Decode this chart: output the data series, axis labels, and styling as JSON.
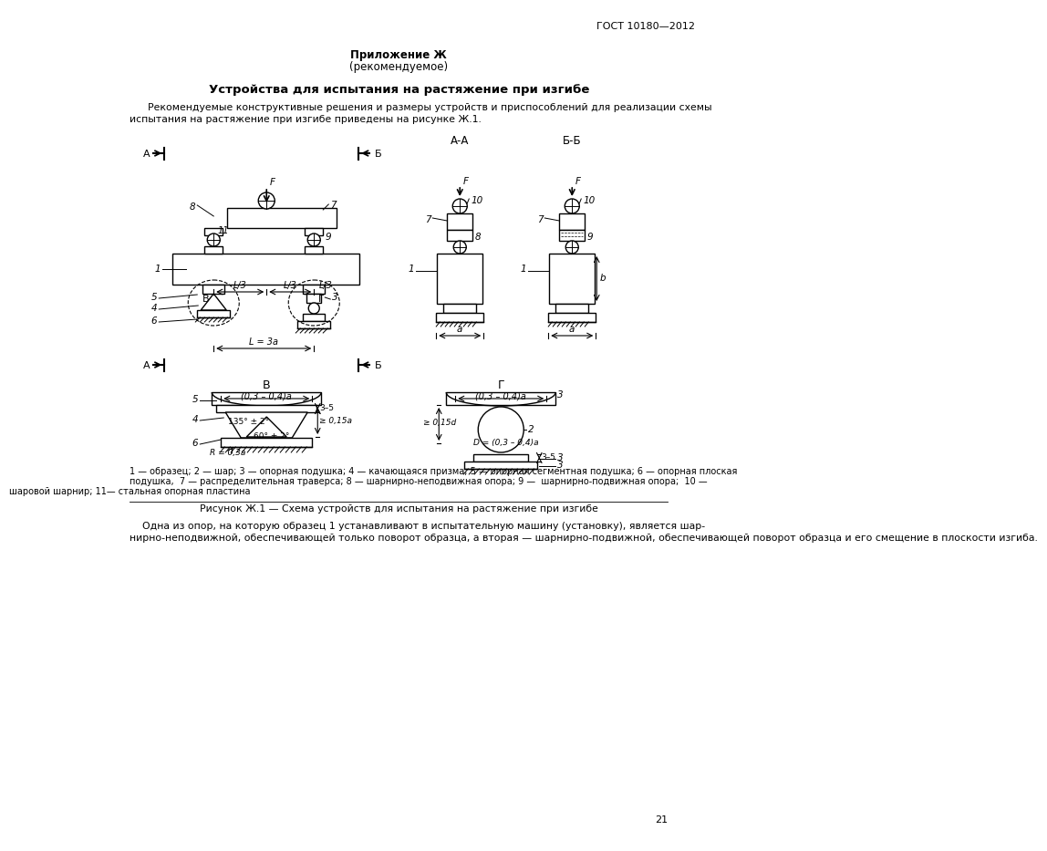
{
  "gost_header": "ГОСТ 10180—2012",
  "appendix_title": "Приложение Ж",
  "appendix_subtitle": "(рекомендуемое)",
  "section_title": "Устройства для испытания на растяжение при изгибе",
  "intro_text": "    Рекомендуемые конструктивные решения и размеры устройств и приспособлений для реализации схемы\nиспытания на растяжение при изгибе приведены на рисунке Ж.1.",
  "legend_text": "1 — образец; 2 — шар; 3 — опорная подушка; 4 — качающаяся призма; 5 — опорная сегментная подушка; 6 — опорная плоская подушка,  7 — распределительная траверса; 8 — шарнирно-неподвижная опора; 9 —  шарнирно-подвижная опора;  10 —\nшаровой шарнир; 11— стальная опорная пластина",
  "figure_caption": "Рисунок Ж.1 — Схема устройств для испытания на растяжение при изгибе",
  "bottom_text_1": "    Одна из опор, на которую образец 1 устанавливают в испытательную машину (установку), является шар-",
  "bottom_text_2": "нирно-неподвижной, обеспечивающей только поворот образца, а вторая — шарнирно-подвижной, обеспечивающей поворот образца и его смещение в плоскости изгиба.",
  "page_number": "21"
}
